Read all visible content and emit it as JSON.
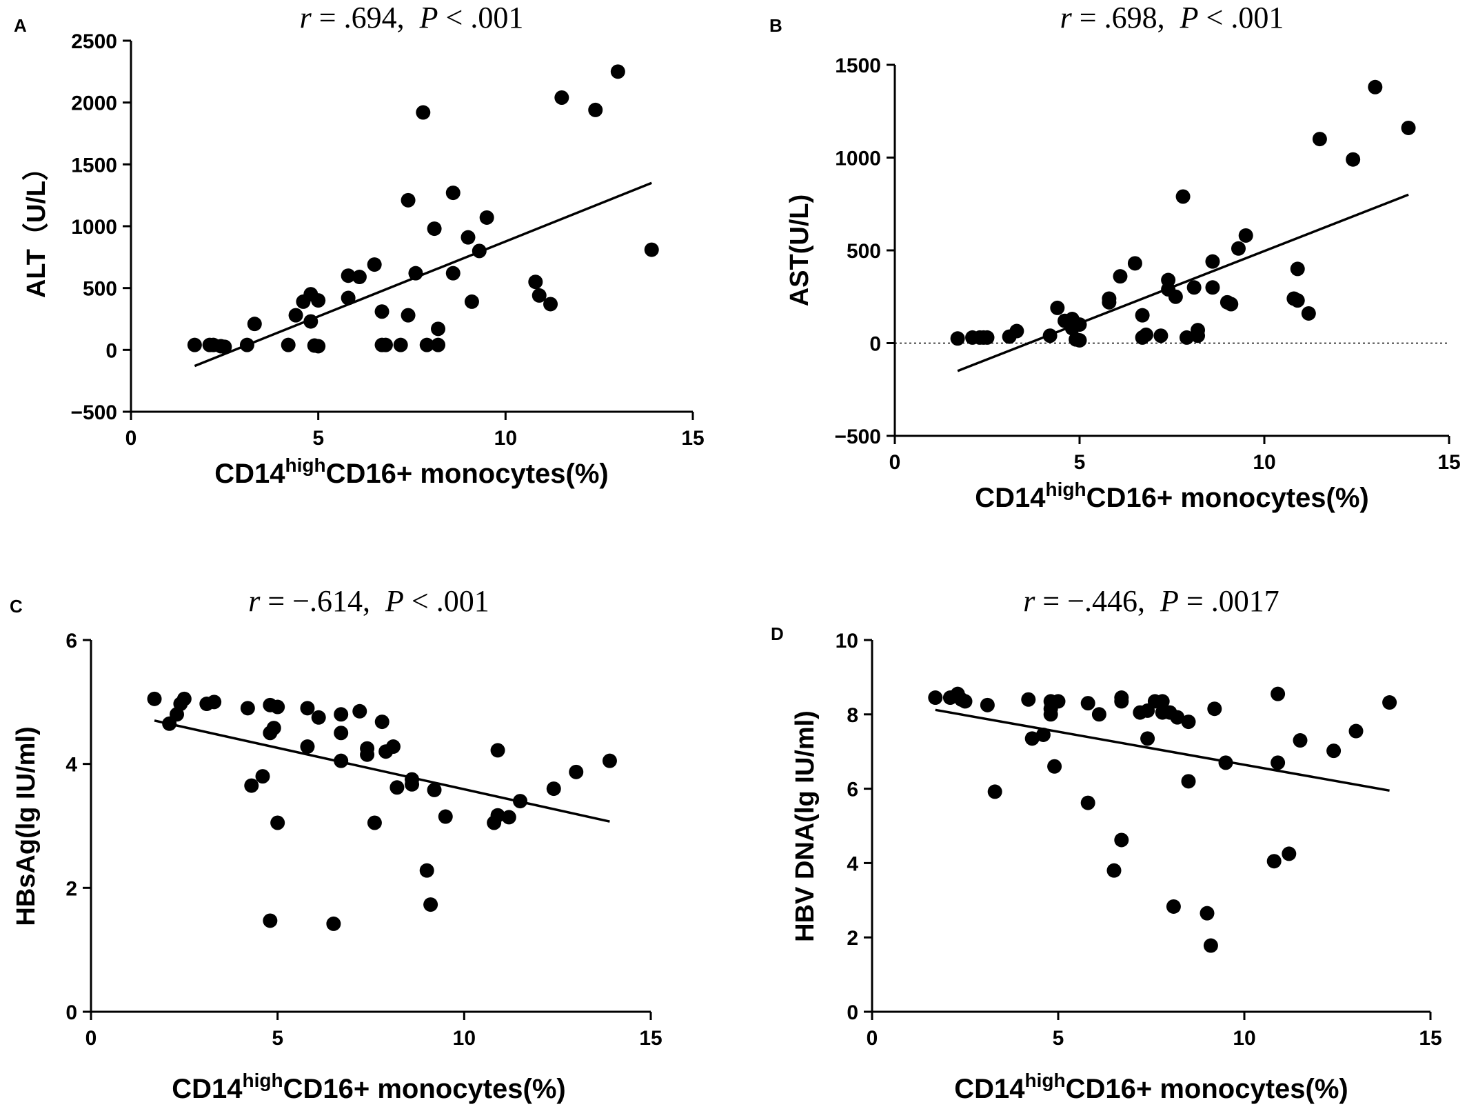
{
  "chart_data": [
    {
      "panel": "A",
      "type": "scatter",
      "stat": {
        "r_label": "r",
        "r_value": " = .694,",
        "p_label": "P",
        "p_value": " < .001"
      },
      "xlabel": {
        "main": "CD14",
        "sup": "high",
        "rest": "CD16+ monocytes(%)"
      },
      "ylabel": "ALT（U/L）",
      "xlim": [
        0,
        15
      ],
      "ylim": [
        -500,
        2500
      ],
      "xticks": [
        "0",
        "5",
        "10",
        "15"
      ],
      "yticks": [
        "−500",
        "0",
        "500",
        "1000",
        "1500",
        "2000",
        "2500"
      ],
      "ytick_values": [
        -500,
        0,
        500,
        1000,
        1500,
        2000,
        2500
      ],
      "xtick_values": [
        0,
        5,
        10,
        15
      ],
      "zero_line": false,
      "fit_line": {
        "x": [
          1.7,
          13.9
        ],
        "y": [
          -130,
          1350
        ]
      },
      "points": [
        [
          1.7,
          40
        ],
        [
          2.1,
          40
        ],
        [
          2.2,
          40
        ],
        [
          2.4,
          30
        ],
        [
          2.5,
          25
        ],
        [
          3.1,
          40
        ],
        [
          3.3,
          210
        ],
        [
          4.2,
          40
        ],
        [
          4.4,
          280
        ],
        [
          4.6,
          390
        ],
        [
          4.8,
          450
        ],
        [
          4.8,
          230
        ],
        [
          4.9,
          35
        ],
        [
          5.0,
          400
        ],
        [
          5.0,
          30
        ],
        [
          5.8,
          420
        ],
        [
          5.8,
          600
        ],
        [
          6.1,
          590
        ],
        [
          6.5,
          690
        ],
        [
          6.7,
          310
        ],
        [
          6.7,
          40
        ],
        [
          6.8,
          40
        ],
        [
          7.2,
          40
        ],
        [
          7.4,
          1210
        ],
        [
          7.4,
          280
        ],
        [
          7.6,
          620
        ],
        [
          7.8,
          1920
        ],
        [
          7.9,
          40
        ],
        [
          8.1,
          980
        ],
        [
          8.2,
          170
        ],
        [
          8.2,
          40
        ],
        [
          8.6,
          1270
        ],
        [
          8.6,
          620
        ],
        [
          9.0,
          910
        ],
        [
          9.1,
          390
        ],
        [
          9.3,
          800
        ],
        [
          9.5,
          1070
        ],
        [
          10.8,
          550
        ],
        [
          10.9,
          440
        ],
        [
          11.2,
          370
        ],
        [
          11.5,
          2040
        ],
        [
          12.4,
          1940
        ],
        [
          13.0,
          2250
        ],
        [
          13.9,
          810
        ]
      ]
    },
    {
      "panel": "B",
      "type": "scatter",
      "stat": {
        "r_label": "r",
        "r_value": " = .698,",
        "p_label": "P",
        "p_value": " < .001"
      },
      "xlabel": {
        "main": "CD14",
        "sup": "high",
        "rest": "CD16+ monocytes(%)"
      },
      "ylabel": "AST(U/L)",
      "xlim": [
        0,
        15
      ],
      "ylim": [
        -500,
        1500
      ],
      "xticks": [
        "0",
        "5",
        "10",
        "15"
      ],
      "yticks": [
        "−500",
        "0",
        "500",
        "1000",
        "1500"
      ],
      "ytick_values": [
        -500,
        0,
        500,
        1000,
        1500
      ],
      "xtick_values": [
        0,
        5,
        10,
        15
      ],
      "zero_line": true,
      "fit_line": {
        "x": [
          1.7,
          13.9
        ],
        "y": [
          -150,
          800
        ]
      },
      "points": [
        [
          1.7,
          25
        ],
        [
          2.1,
          30
        ],
        [
          2.3,
          30
        ],
        [
          2.4,
          30
        ],
        [
          2.5,
          30
        ],
        [
          3.1,
          35
        ],
        [
          3.3,
          65
        ],
        [
          4.2,
          40
        ],
        [
          4.4,
          190
        ],
        [
          4.6,
          120
        ],
        [
          4.8,
          130
        ],
        [
          4.8,
          80
        ],
        [
          4.9,
          20
        ],
        [
          5.0,
          100
        ],
        [
          5.0,
          15
        ],
        [
          5.8,
          220
        ],
        [
          5.8,
          240
        ],
        [
          6.1,
          360
        ],
        [
          6.5,
          430
        ],
        [
          6.7,
          150
        ],
        [
          6.7,
          30
        ],
        [
          6.8,
          45
        ],
        [
          7.2,
          40
        ],
        [
          7.4,
          340
        ],
        [
          7.4,
          290
        ],
        [
          7.6,
          250
        ],
        [
          7.8,
          790
        ],
        [
          7.9,
          30
        ],
        [
          8.1,
          300
        ],
        [
          8.2,
          70
        ],
        [
          8.2,
          40
        ],
        [
          8.6,
          440
        ],
        [
          8.6,
          300
        ],
        [
          9.0,
          220
        ],
        [
          9.1,
          210
        ],
        [
          9.3,
          510
        ],
        [
          9.5,
          580
        ],
        [
          10.8,
          240
        ],
        [
          10.9,
          400
        ],
        [
          10.9,
          230
        ],
        [
          11.2,
          160
        ],
        [
          11.5,
          1100
        ],
        [
          12.4,
          990
        ],
        [
          13.0,
          1380
        ],
        [
          13.9,
          1160
        ]
      ]
    },
    {
      "panel": "C",
      "type": "scatter",
      "stat": {
        "r_label": "r",
        "r_value": " = −.614,",
        "p_label": "P",
        "p_value": " < .001"
      },
      "xlabel": {
        "main": "CD14",
        "sup": "high",
        "rest": "CD16+ monocytes(%)"
      },
      "ylabel": "HBsAg(lg IU/ml)",
      "xlim": [
        0,
        15
      ],
      "ylim": [
        0,
        6
      ],
      "xticks": [
        "0",
        "5",
        "10",
        "15"
      ],
      "yticks": [
        "0",
        "2",
        "4",
        "6"
      ],
      "ytick_values": [
        0,
        2,
        4,
        6
      ],
      "xtick_values": [
        0,
        5,
        10,
        15
      ],
      "zero_line": false,
      "fit_line": {
        "x": [
          1.7,
          13.9
        ],
        "y": [
          4.7,
          3.07
        ]
      },
      "points": [
        [
          1.7,
          5.05
        ],
        [
          2.1,
          4.65
        ],
        [
          2.3,
          4.8
        ],
        [
          2.4,
          4.97
        ],
        [
          2.5,
          5.05
        ],
        [
          3.1,
          4.97
        ],
        [
          3.3,
          5.0
        ],
        [
          4.2,
          4.9
        ],
        [
          4.3,
          3.65
        ],
        [
          4.6,
          3.8
        ],
        [
          4.8,
          4.95
        ],
        [
          4.8,
          4.5
        ],
        [
          4.8,
          1.47
        ],
        [
          4.9,
          4.58
        ],
        [
          5.0,
          4.92
        ],
        [
          5.0,
          3.05
        ],
        [
          5.8,
          4.9
        ],
        [
          5.8,
          4.28
        ],
        [
          6.1,
          4.75
        ],
        [
          6.5,
          1.42
        ],
        [
          6.7,
          4.8
        ],
        [
          6.7,
          4.05
        ],
        [
          6.7,
          4.5
        ],
        [
          7.2,
          4.85
        ],
        [
          7.4,
          4.25
        ],
        [
          7.4,
          4.15
        ],
        [
          7.6,
          3.05
        ],
        [
          7.8,
          4.68
        ],
        [
          7.9,
          4.2
        ],
        [
          8.1,
          4.28
        ],
        [
          8.2,
          3.62
        ],
        [
          8.6,
          3.75
        ],
        [
          8.6,
          3.67
        ],
        [
          9.0,
          2.28
        ],
        [
          9.1,
          1.73
        ],
        [
          9.2,
          3.58
        ],
        [
          9.5,
          3.15
        ],
        [
          10.8,
          3.05
        ],
        [
          10.9,
          4.22
        ],
        [
          10.9,
          3.17
        ],
        [
          11.2,
          3.14
        ],
        [
          11.5,
          3.4
        ],
        [
          12.4,
          3.6
        ],
        [
          13.0,
          3.87
        ],
        [
          13.9,
          4.05
        ]
      ]
    },
    {
      "panel": "D",
      "type": "scatter",
      "stat": {
        "r_label": "r",
        "r_value": " = −.446,",
        "p_label": "P",
        "p_value": " = .0017"
      },
      "xlabel": {
        "main": "CD14",
        "sup": "high",
        "rest": "CD16+ monocytes(%)"
      },
      "ylabel": "HBV DNA(lg IU/ml)",
      "xlim": [
        0,
        15
      ],
      "ylim": [
        0,
        10
      ],
      "xticks": [
        "0",
        "5",
        "10",
        "15"
      ],
      "yticks": [
        "0",
        "2",
        "4",
        "6",
        "8",
        "10"
      ],
      "ytick_values": [
        0,
        2,
        4,
        6,
        8,
        10
      ],
      "xtick_values": [
        0,
        5,
        10,
        15
      ],
      "zero_line": false,
      "fit_line": {
        "x": [
          1.7,
          13.9
        ],
        "y": [
          8.12,
          5.95
        ]
      },
      "points": [
        [
          1.7,
          8.45
        ],
        [
          2.1,
          8.45
        ],
        [
          2.3,
          8.55
        ],
        [
          2.4,
          8.4
        ],
        [
          2.5,
          8.35
        ],
        [
          3.1,
          8.25
        ],
        [
          3.3,
          5.92
        ],
        [
          4.2,
          8.4
        ],
        [
          4.3,
          7.35
        ],
        [
          4.6,
          7.45
        ],
        [
          4.8,
          8.35
        ],
        [
          4.8,
          8.15
        ],
        [
          4.8,
          8.0
        ],
        [
          4.9,
          6.6
        ],
        [
          5.0,
          8.35
        ],
        [
          5.8,
          8.3
        ],
        [
          5.8,
          5.62
        ],
        [
          6.1,
          8.0
        ],
        [
          6.5,
          3.8
        ],
        [
          6.7,
          8.45
        ],
        [
          6.7,
          8.35
        ],
        [
          6.7,
          4.62
        ],
        [
          7.2,
          8.05
        ],
        [
          7.4,
          8.1
        ],
        [
          7.4,
          7.35
        ],
        [
          7.6,
          8.35
        ],
        [
          7.8,
          8.35
        ],
        [
          7.8,
          8.05
        ],
        [
          8.0,
          8.05
        ],
        [
          8.1,
          2.83
        ],
        [
          8.2,
          7.92
        ],
        [
          8.5,
          7.8
        ],
        [
          8.5,
          6.2
        ],
        [
          9.0,
          2.65
        ],
        [
          9.1,
          1.78
        ],
        [
          9.2,
          8.15
        ],
        [
          9.5,
          6.7
        ],
        [
          10.8,
          4.05
        ],
        [
          10.9,
          8.55
        ],
        [
          10.9,
          6.7
        ],
        [
          11.2,
          4.25
        ],
        [
          11.5,
          7.3
        ],
        [
          12.4,
          7.02
        ],
        [
          13.0,
          7.55
        ],
        [
          13.9,
          8.32
        ]
      ]
    }
  ]
}
